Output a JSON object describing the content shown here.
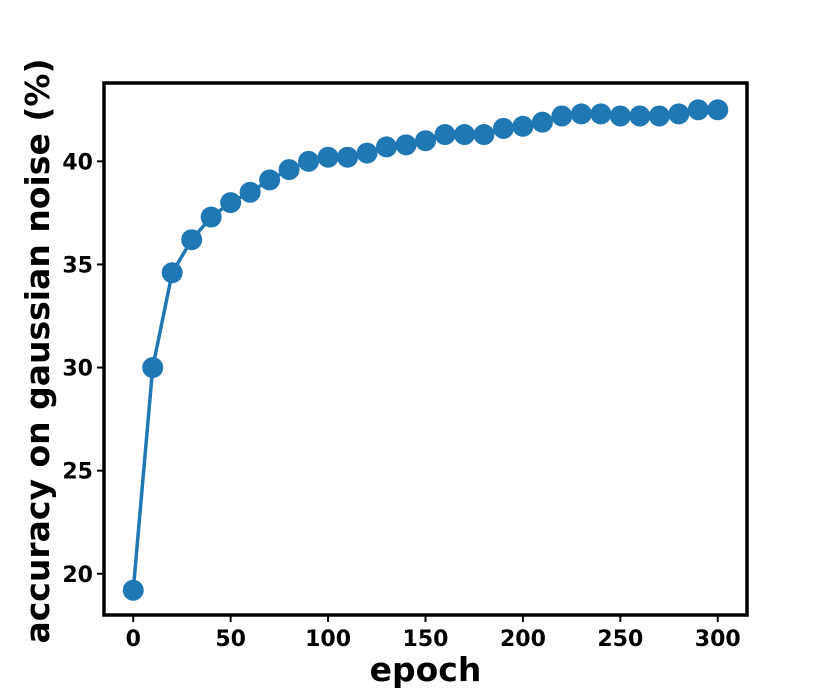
{
  "chart_data": {
    "type": "line",
    "title": "",
    "xlabel": "epoch",
    "ylabel": "accuracy on gaussian noise (%)",
    "xlim": [
      -15,
      315
    ],
    "ylim": [
      18,
      43.8
    ],
    "xticks": [
      0,
      50,
      100,
      150,
      200,
      250,
      300
    ],
    "yticks": [
      20,
      25,
      30,
      35,
      40
    ],
    "grid": false,
    "legend": "none",
    "series": [
      {
        "color": "#1f77b4",
        "marker": "circle",
        "x": [
          0,
          10,
          20,
          30,
          40,
          50,
          60,
          70,
          80,
          90,
          100,
          110,
          120,
          130,
          140,
          150,
          160,
          170,
          180,
          190,
          200,
          210,
          220,
          230,
          240,
          250,
          260,
          270,
          280,
          290,
          300
        ],
        "y": [
          19.2,
          30.0,
          34.6,
          36.2,
          37.3,
          38.0,
          38.5,
          39.1,
          39.6,
          40.0,
          40.2,
          40.2,
          40.4,
          40.7,
          40.8,
          41.0,
          41.3,
          41.3,
          41.3,
          41.6,
          41.7,
          41.9,
          42.2,
          42.3,
          42.3,
          42.2,
          42.2,
          42.2,
          42.3,
          42.5,
          42.5
        ]
      }
    ]
  }
}
